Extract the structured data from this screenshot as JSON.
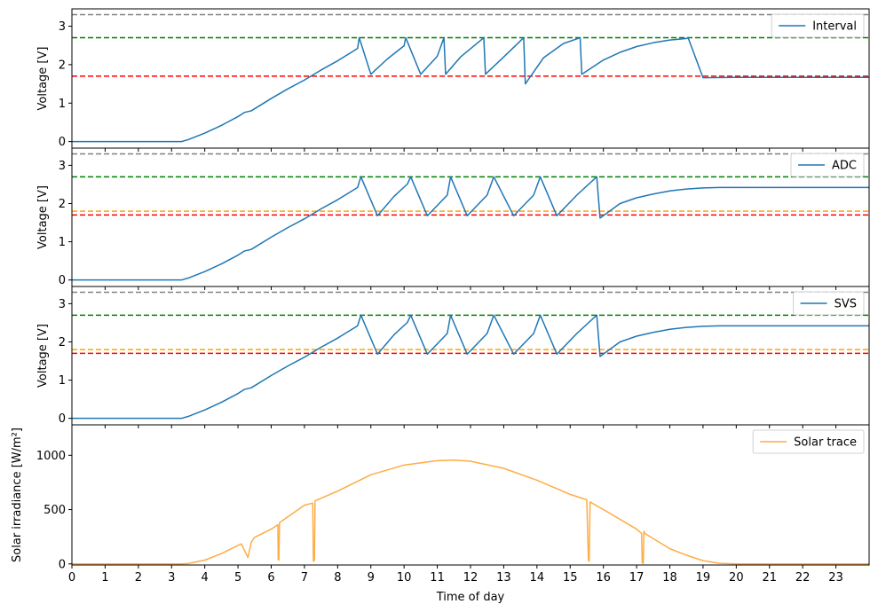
{
  "chart_data": [
    {
      "type": "line",
      "ylabel": "Voltage [V]",
      "ylim": [
        -0.17,
        3.45
      ],
      "yticks": [
        0,
        1,
        2,
        3
      ],
      "xlim": [
        0,
        24
      ],
      "grid": false,
      "legend_position": "top-right",
      "series": [
        {
          "name": "Interval",
          "color": "#1f77b4",
          "x": [
            0,
            3.3,
            3.5,
            4.0,
            4.5,
            5.0,
            5.2,
            5.4,
            6.0,
            6.5,
            7.0,
            7.5,
            8.0,
            8.6,
            8.65,
            9.0,
            9.5,
            10.0,
            10.05,
            10.5,
            11.0,
            11.2,
            11.25,
            11.7,
            12.4,
            12.45,
            13.0,
            13.6,
            13.65,
            14.2,
            14.8,
            15.3,
            15.35,
            16.0,
            16.5,
            17.0,
            17.5,
            18.0,
            18.5,
            18.55,
            19.0,
            20.0,
            24.0
          ],
          "y": [
            0,
            0,
            0.05,
            0.22,
            0.42,
            0.65,
            0.76,
            0.8,
            1.12,
            1.37,
            1.6,
            1.86,
            2.1,
            2.42,
            2.7,
            1.75,
            2.15,
            2.49,
            2.7,
            1.75,
            2.22,
            2.7,
            1.75,
            2.2,
            2.7,
            1.75,
            2.2,
            2.7,
            1.5,
            2.18,
            2.55,
            2.7,
            1.75,
            2.12,
            2.32,
            2.47,
            2.57,
            2.64,
            2.68,
            2.7,
            1.66,
            1.67,
            1.67
          ]
        }
      ],
      "ref_lines": [
        {
          "y": 3.3,
          "color": "#808080"
        },
        {
          "y": 2.7,
          "color": "#008000"
        },
        {
          "y": 1.7,
          "color": "#ff0000"
        }
      ]
    },
    {
      "type": "line",
      "ylabel": "Voltage [V]",
      "ylim": [
        -0.17,
        3.45
      ],
      "yticks": [
        0,
        1,
        2,
        3
      ],
      "xlim": [
        0,
        24
      ],
      "grid": false,
      "legend_position": "top-right",
      "series": [
        {
          "name": "ADC",
          "color": "#1f77b4",
          "x": [
            0,
            3.3,
            3.5,
            4.0,
            4.5,
            5.0,
            5.2,
            5.4,
            6.0,
            6.5,
            7.0,
            7.5,
            8.0,
            8.6,
            8.7,
            9.2,
            9.7,
            10.1,
            10.2,
            10.7,
            11.3,
            11.4,
            11.9,
            12.5,
            12.7,
            13.3,
            13.9,
            14.1,
            14.6,
            15.2,
            15.8,
            15.9,
            16.5,
            17.0,
            17.5,
            18.0,
            18.5,
            19.0,
            19.5,
            20.0,
            24.0
          ],
          "y": [
            0,
            0,
            0.05,
            0.22,
            0.42,
            0.65,
            0.76,
            0.8,
            1.12,
            1.37,
            1.6,
            1.86,
            2.1,
            2.42,
            2.7,
            1.68,
            2.19,
            2.51,
            2.7,
            1.68,
            2.22,
            2.7,
            1.68,
            2.22,
            2.7,
            1.68,
            2.22,
            2.7,
            1.68,
            2.22,
            2.7,
            1.62,
            2.0,
            2.15,
            2.25,
            2.33,
            2.38,
            2.41,
            2.42,
            2.42,
            2.42
          ]
        }
      ],
      "ref_lines": [
        {
          "y": 3.3,
          "color": "#808080"
        },
        {
          "y": 2.7,
          "color": "#008000"
        },
        {
          "y": 1.8,
          "color": "#ffa500"
        },
        {
          "y": 1.7,
          "color": "#ff0000"
        }
      ]
    },
    {
      "type": "line",
      "ylabel": "Voltage [V]",
      "ylim": [
        -0.17,
        3.45
      ],
      "yticks": [
        0,
        1,
        2,
        3
      ],
      "xlim": [
        0,
        24
      ],
      "grid": false,
      "legend_position": "top-right",
      "series": [
        {
          "name": "SVS",
          "color": "#1f77b4",
          "x": [
            0,
            3.3,
            3.5,
            4.0,
            4.5,
            5.0,
            5.2,
            5.4,
            6.0,
            6.5,
            7.0,
            7.5,
            8.0,
            8.6,
            8.7,
            9.2,
            9.7,
            10.1,
            10.2,
            10.7,
            11.3,
            11.4,
            11.9,
            12.5,
            12.7,
            13.3,
            13.9,
            14.1,
            14.6,
            15.2,
            15.8,
            15.9,
            16.5,
            17.0,
            17.5,
            18.0,
            18.5,
            19.0,
            19.5,
            20.0,
            24.0
          ],
          "y": [
            0,
            0,
            0.05,
            0.22,
            0.42,
            0.65,
            0.76,
            0.8,
            1.12,
            1.37,
            1.6,
            1.86,
            2.1,
            2.42,
            2.7,
            1.68,
            2.19,
            2.51,
            2.7,
            1.68,
            2.22,
            2.7,
            1.68,
            2.22,
            2.7,
            1.68,
            2.22,
            2.7,
            1.68,
            2.22,
            2.7,
            1.62,
            2.0,
            2.15,
            2.25,
            2.33,
            2.38,
            2.41,
            2.42,
            2.42,
            2.42
          ]
        }
      ],
      "ref_lines": [
        {
          "y": 3.3,
          "color": "#808080"
        },
        {
          "y": 2.7,
          "color": "#008000"
        },
        {
          "y": 1.8,
          "color": "#ffa500"
        },
        {
          "y": 1.7,
          "color": "#ff0000"
        }
      ]
    },
    {
      "type": "line",
      "ylabel": "Solar irradiance [W/m²]",
      "xlabel": "Time of day",
      "ylim": [
        -10,
        1280
      ],
      "yticks": [
        0,
        500,
        1000
      ],
      "xlim": [
        0,
        24
      ],
      "xticks": [
        "0",
        "1",
        "2",
        "3",
        "4",
        "5",
        "6",
        "7",
        "8",
        "9",
        "10",
        "11",
        "12",
        "13",
        "14",
        "15",
        "16",
        "17",
        "18",
        "19",
        "20",
        "21",
        "22",
        "23"
      ],
      "grid": false,
      "legend_position": "top-right",
      "series": [
        {
          "name": "Solar trace",
          "color": "#ffac45",
          "x": [
            0,
            3.3,
            3.5,
            4.0,
            4.5,
            5.0,
            5.1,
            5.2,
            5.3,
            5.4,
            5.5,
            6.0,
            6.2,
            6.21,
            6.23,
            6.25,
            7.0,
            7.25,
            7.27,
            7.3,
            7.32,
            8.0,
            9.0,
            10.0,
            11.0,
            11.5,
            12.0,
            13.0,
            14.0,
            15.0,
            15.5,
            15.55,
            15.57,
            15.6,
            16.0,
            17.0,
            17.15,
            17.17,
            17.2,
            17.22,
            17.25,
            18.0,
            18.5,
            19.0,
            19.5,
            20.0,
            24.0
          ],
          "y": [
            0,
            0,
            3,
            35,
            95,
            170,
            185,
            120,
            60,
            200,
            245,
            320,
            360,
            40,
            35,
            380,
            540,
            560,
            25,
            30,
            580,
            670,
            820,
            910,
            950,
            955,
            945,
            880,
            770,
            640,
            590,
            30,
            25,
            570,
            500,
            320,
            280,
            10,
            5,
            300,
            280,
            140,
            80,
            30,
            5,
            0,
            0
          ]
        }
      ],
      "ref_lines": []
    }
  ]
}
